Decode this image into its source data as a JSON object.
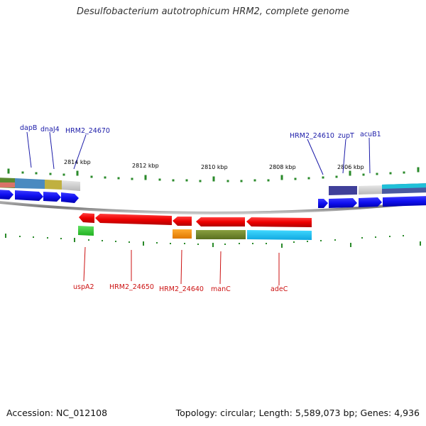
{
  "title": "Desulfobacterium autotrophicum HRM2, complete genome",
  "footer": {
    "accession": "Accession: NC_012108",
    "summary": "Topology: circular; Length: 5,589,073 bp; Genes: 4,936"
  },
  "colors": {
    "forward_label": "#1a1aa8",
    "reverse_label": "#cc1111",
    "tick": "#2a8a2a",
    "backbone": "#8a8a8a"
  },
  "scale_labels": [
    "2814 kbp",
    "2812 kbp",
    "2810 kbp",
    "2808 kbp",
    "2806 kbp"
  ],
  "forward_gene_labels": [
    "dapB",
    "dnaJ4",
    "HRM2_24670",
    "HRM2_24610",
    "zupT",
    "acuB1"
  ],
  "reverse_gene_labels": [
    "uspA2",
    "HRM2_24650",
    "HRM2_24640",
    "manC",
    "adeC"
  ]
}
